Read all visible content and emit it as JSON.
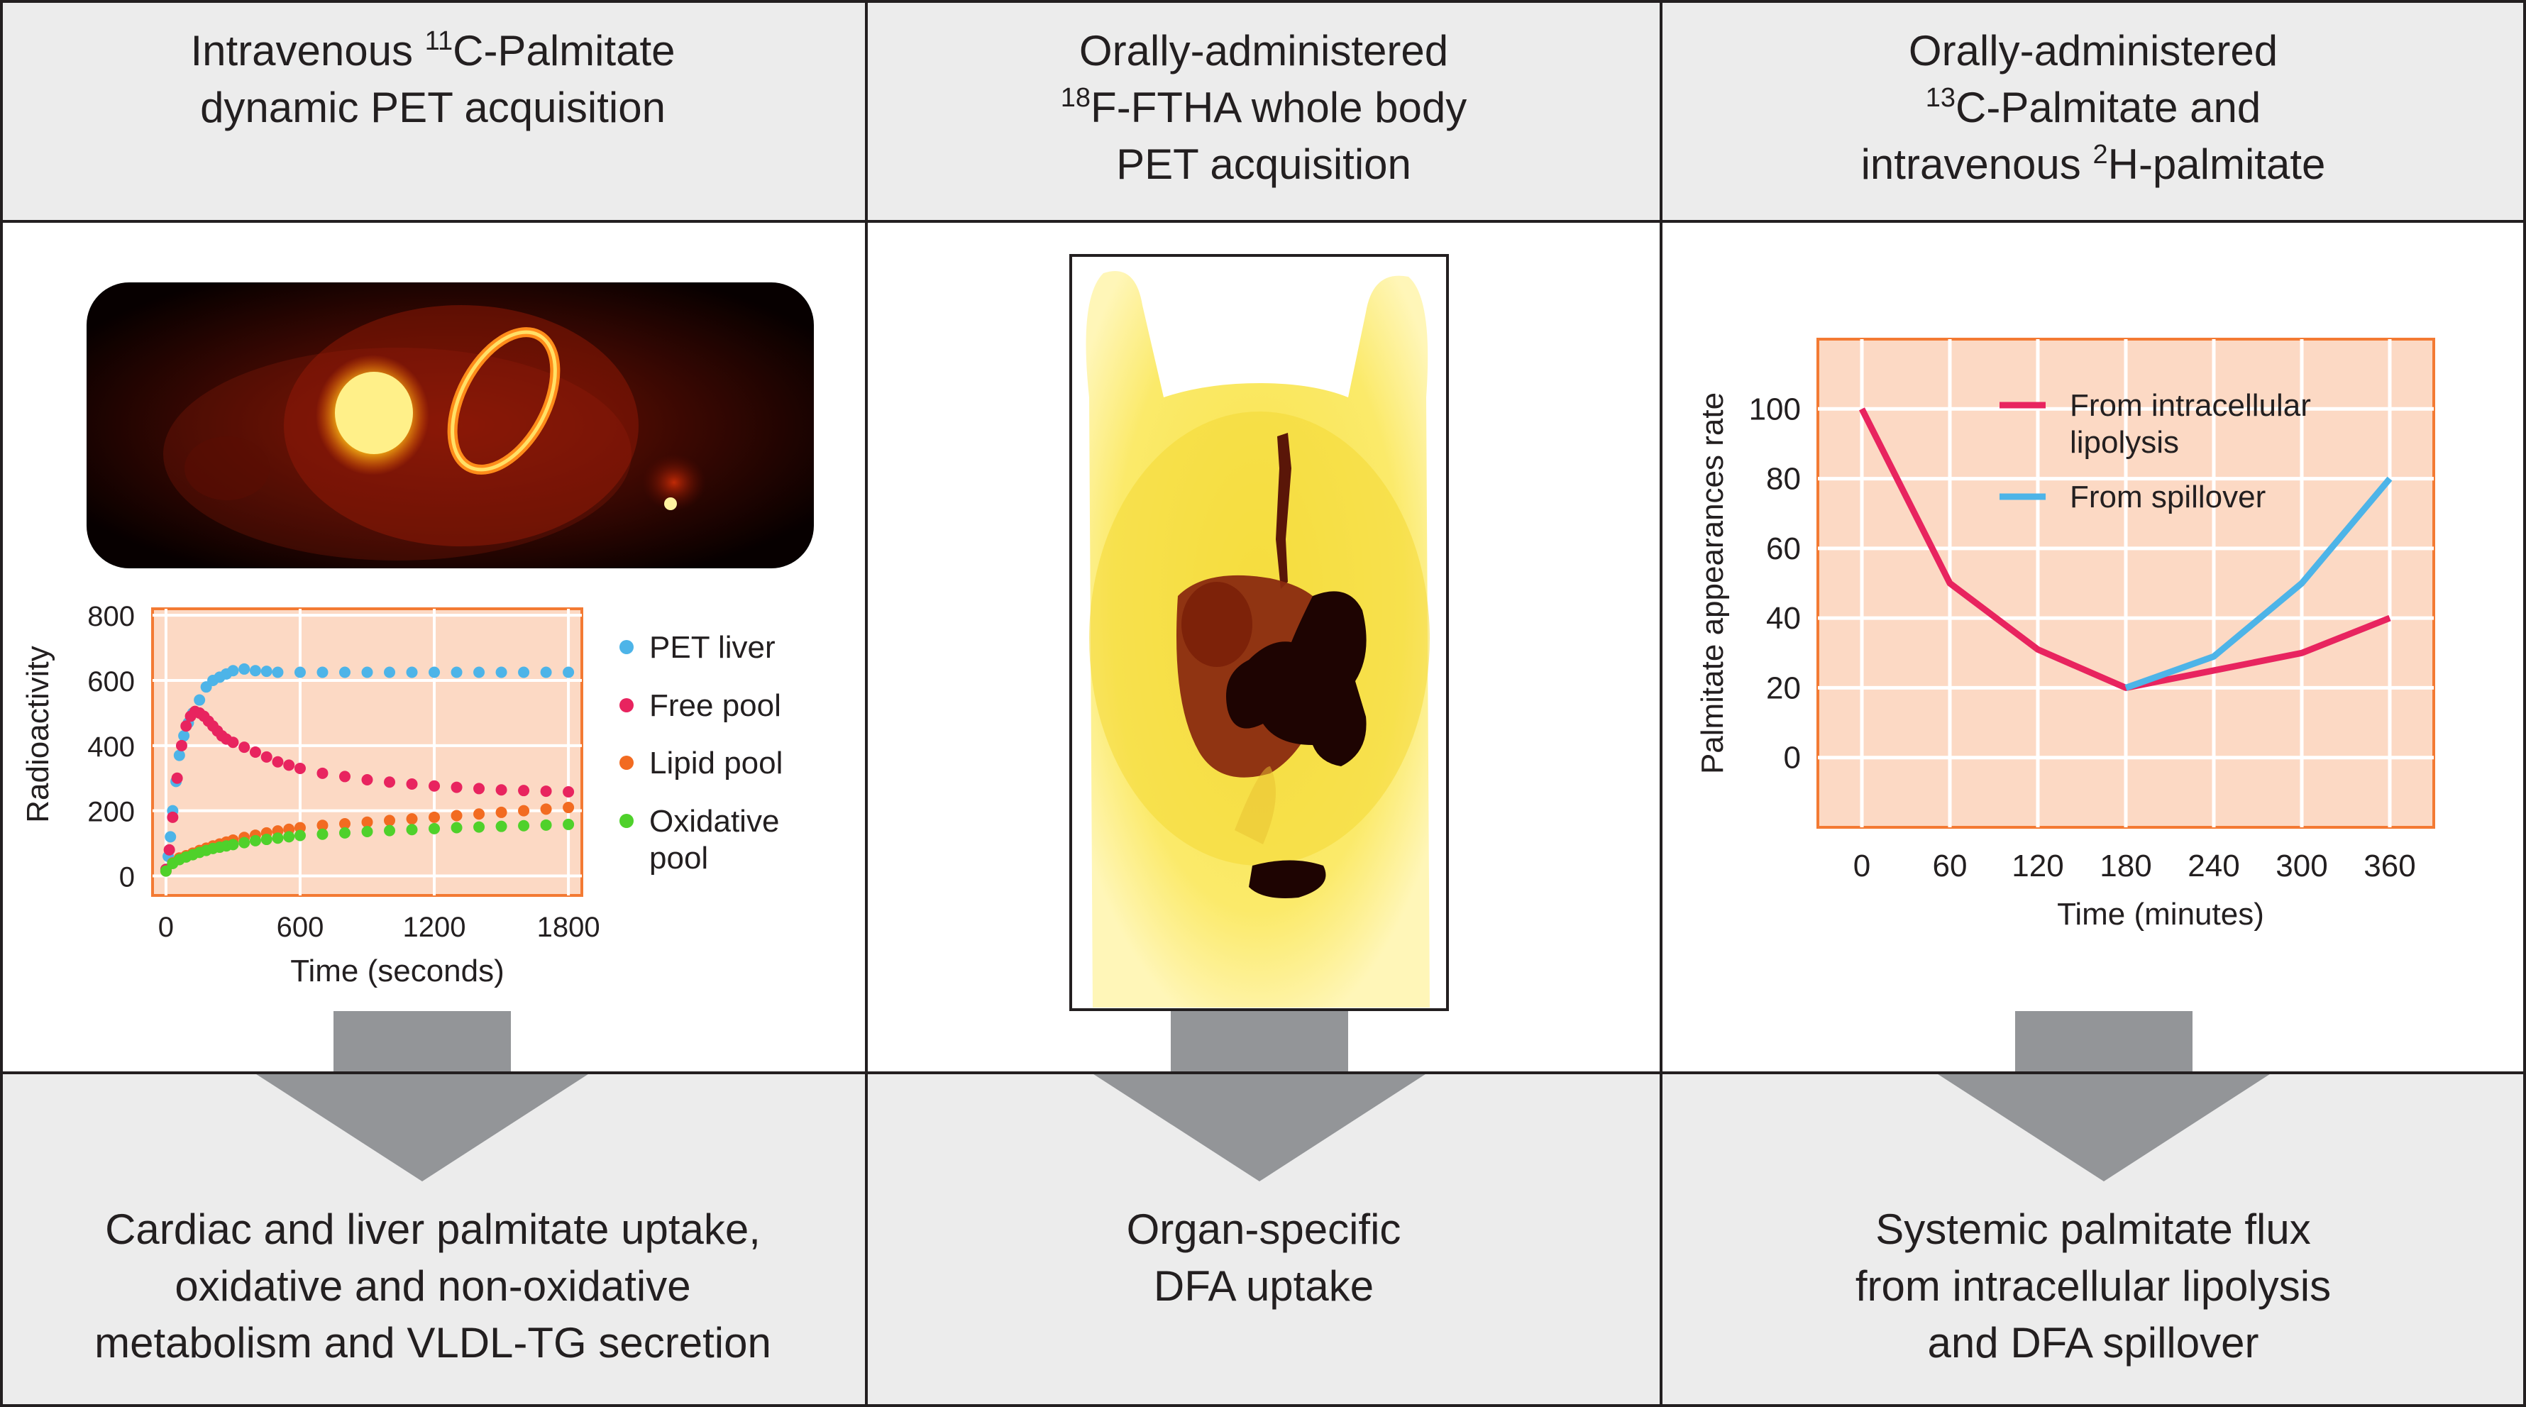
{
  "columns": [
    {
      "header": [
        {
          "parts": [
            {
              "t": "Intravenous "
            },
            {
              "t": "11",
              "sup": true
            },
            {
              "t": "C-Palmitate"
            }
          ]
        },
        {
          "parts": [
            {
              "t": "dynamic PET acquisition"
            }
          ]
        }
      ],
      "footer": [
        "Cardiac and liver palmitate uptake,",
        "oxidative and non-oxidative",
        "metabolism and VLDL-TG secretion"
      ]
    },
    {
      "header": [
        {
          "parts": [
            {
              "t": "Orally-administered"
            }
          ]
        },
        {
          "parts": [
            {
              "t": "18",
              "sup": true
            },
            {
              "t": "F-FTHA whole body"
            }
          ]
        },
        {
          "parts": [
            {
              "t": "PET acquisition"
            }
          ]
        }
      ],
      "footer": [
        "Organ-specific",
        "DFA uptake"
      ]
    },
    {
      "header": [
        {
          "parts": [
            {
              "t": "Orally-administered"
            }
          ]
        },
        {
          "parts": [
            {
              "t": "13",
              "sup": true
            },
            {
              "t": "C-Palmitate and"
            }
          ]
        },
        {
          "parts": [
            {
              "t": "intravenous "
            },
            {
              "t": "2",
              "sup": true
            },
            {
              "t": "H-palmitate"
            }
          ]
        }
      ],
      "footer": [
        "Systemic palmitate flux",
        "from intracellular lipolysis",
        "and DFA spillover"
      ]
    }
  ],
  "colors": {
    "band": "#ececec",
    "grid_line": "#231f20",
    "plot_bg": "#fcd9c4",
    "plot_border": "#f37a33",
    "arrow": "#939598",
    "blue": "#4db4e8",
    "pink": "#e8245f",
    "orange": "#f26b21",
    "green": "#4fd12b"
  },
  "chart_data": [
    {
      "type": "scatter",
      "title": "",
      "xlabel": "Time (seconds)",
      "ylabel": "Radioactivity",
      "xlim": [
        -60,
        1860
      ],
      "ylim": [
        -60,
        820
      ],
      "xticks": [
        0,
        600,
        1200,
        1800
      ],
      "yticks": [
        0,
        200,
        400,
        600,
        800
      ],
      "legend_position": "right",
      "series": [
        {
          "name": "PET liver",
          "color": "#4db4e8",
          "x": [
            0,
            10,
            20,
            30,
            45,
            60,
            80,
            100,
            120,
            150,
            180,
            210,
            240,
            270,
            300,
            350,
            400,
            450,
            500,
            600,
            700,
            800,
            900,
            1000,
            1100,
            1200,
            1300,
            1400,
            1500,
            1600,
            1700,
            1800
          ],
          "y": [
            20,
            60,
            120,
            200,
            290,
            370,
            430,
            470,
            500,
            540,
            580,
            600,
            610,
            620,
            630,
            635,
            630,
            628,
            625,
            625,
            625,
            625,
            625,
            625,
            625,
            625,
            625,
            625,
            625,
            625,
            625,
            625
          ]
        },
        {
          "name": "Free pool",
          "color": "#e8245f",
          "x": [
            0,
            15,
            30,
            50,
            70,
            90,
            110,
            130,
            150,
            170,
            190,
            210,
            230,
            250,
            270,
            300,
            350,
            400,
            450,
            500,
            550,
            600,
            700,
            800,
            900,
            1000,
            1100,
            1200,
            1300,
            1400,
            1500,
            1600,
            1700,
            1800
          ],
          "y": [
            20,
            80,
            180,
            300,
            400,
            460,
            490,
            505,
            500,
            490,
            475,
            460,
            445,
            430,
            420,
            410,
            395,
            380,
            365,
            350,
            340,
            330,
            315,
            305,
            295,
            288,
            282,
            276,
            272,
            268,
            264,
            262,
            260,
            258
          ]
        },
        {
          "name": "Lipid pool",
          "color": "#f26b21",
          "x": [
            0,
            30,
            60,
            90,
            120,
            150,
            180,
            210,
            240,
            270,
            300,
            350,
            400,
            450,
            500,
            550,
            600,
            700,
            800,
            900,
            1000,
            1100,
            1200,
            1300,
            1400,
            1500,
            1600,
            1700,
            1800
          ],
          "y": [
            15,
            40,
            55,
            62,
            70,
            78,
            85,
            92,
            98,
            104,
            110,
            118,
            125,
            132,
            138,
            143,
            148,
            155,
            160,
            165,
            170,
            175,
            180,
            185,
            190,
            195,
            200,
            205,
            210
          ]
        },
        {
          "name": "Oxidative pool",
          "color": "#4fd12b",
          "x": [
            0,
            30,
            60,
            90,
            120,
            150,
            180,
            210,
            240,
            270,
            300,
            350,
            400,
            450,
            500,
            550,
            600,
            700,
            800,
            900,
            1000,
            1100,
            1200,
            1300,
            1400,
            1500,
            1600,
            1700,
            1800
          ],
          "y": [
            15,
            38,
            50,
            58,
            65,
            72,
            78,
            84,
            88,
            92,
            96,
            102,
            108,
            112,
            116,
            120,
            124,
            128,
            132,
            136,
            139,
            142,
            145,
            148,
            150,
            152,
            154,
            156,
            158
          ]
        }
      ]
    },
    {
      "type": "line",
      "title": "",
      "xlabel": "Time (minutes)",
      "ylabel": "Palmitate appearances rate",
      "xlim": [
        -30,
        390
      ],
      "ylim": [
        -20,
        120
      ],
      "xticks": [
        0,
        60,
        120,
        180,
        240,
        300,
        360
      ],
      "yticks": [
        0,
        20,
        40,
        60,
        80,
        100
      ],
      "legend_position": "top-right",
      "series": [
        {
          "name": "From intracellular lipolysis",
          "color": "#e8245f",
          "x": [
            0,
            60,
            120,
            180,
            240,
            300,
            360
          ],
          "y": [
            100,
            50,
            31,
            20,
            25,
            30,
            40
          ]
        },
        {
          "name": "From spillover",
          "color": "#4db4e8",
          "x": [
            180,
            240,
            300,
            360
          ],
          "y": [
            20,
            29,
            50,
            80
          ]
        }
      ]
    }
  ]
}
